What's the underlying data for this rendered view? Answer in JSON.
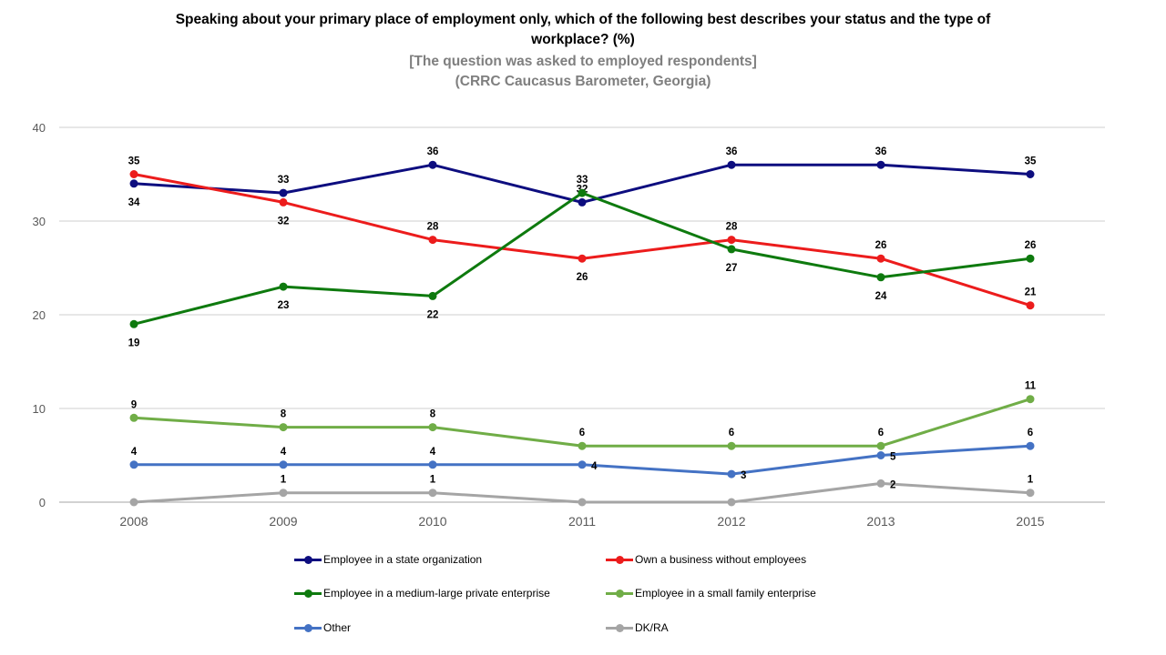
{
  "header": {
    "title_line1": "Speaking about your primary place of employment only, which of the following best describes your status and the type of",
    "title_line2": "workplace? (%)",
    "subtitle_line1": "[The question was asked to employed respondents]",
    "subtitle_line2": "(CRRC Caucasus Barometer, Georgia)"
  },
  "chart_data": {
    "type": "line",
    "title": "Speaking about your primary place of employment only, which of the following best describes your status and the type of workplace? (%)",
    "subtitle": "[The question was asked to employed respondents] (CRRC Caucasus Barometer, Georgia)",
    "categories": [
      "2008",
      "2009",
      "2010",
      "2011",
      "2012",
      "2013",
      "2015"
    ],
    "ylim": [
      0,
      40
    ],
    "yticks": [
      0,
      10,
      20,
      30,
      40
    ],
    "grid": "horizontal",
    "legend_position": "bottom",
    "series": [
      {
        "name": "Employee in a state organization",
        "color": "#0d0d7f",
        "values": [
          34,
          33,
          36,
          32,
          36,
          36,
          35
        ],
        "label_pos": [
          "below",
          "above",
          "above",
          "above",
          "above",
          "above",
          "above"
        ]
      },
      {
        "name": "Own a business without employees",
        "color": "#ec1c1c",
        "values": [
          35,
          32,
          28,
          26,
          28,
          26,
          21
        ],
        "label_pos": [
          "above",
          "below",
          "above",
          "below",
          "above",
          "above",
          "above"
        ]
      },
      {
        "name": "Employee in a medium-large private enterprise",
        "color": "#0e7a0e",
        "values": [
          19,
          23,
          22,
          33,
          27,
          24,
          26
        ],
        "label_pos": [
          "below",
          "below",
          "below",
          "above",
          "below",
          "below",
          "above"
        ]
      },
      {
        "name": "Employee in a small family enterprise",
        "color": "#70ad47",
        "values": [
          9,
          8,
          8,
          6,
          6,
          6,
          11
        ],
        "label_pos": [
          "above",
          "above",
          "above",
          "above",
          "above",
          "above",
          "above"
        ]
      },
      {
        "name": "Other",
        "color": "#4472c4",
        "values": [
          4,
          4,
          4,
          4,
          3,
          5,
          6
        ],
        "label_pos": [
          "above",
          "above",
          "above",
          "right",
          "right",
          "right",
          "above"
        ]
      },
      {
        "name": "DK/RA",
        "color": "#a5a5a5",
        "values": [
          0,
          1,
          1,
          0,
          0,
          2,
          1
        ],
        "label_pos": [
          "none",
          "above",
          "above",
          "none",
          "none",
          "right",
          "above"
        ]
      }
    ]
  }
}
